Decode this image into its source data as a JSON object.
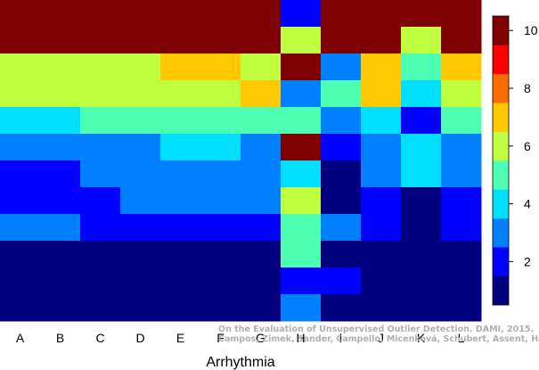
{
  "chart_data": {
    "type": "heatmap",
    "xlabel": "Arrhythmia",
    "columns": [
      "A",
      "B",
      "C",
      "D",
      "E",
      "F",
      "G",
      "H",
      "I",
      "J",
      "K",
      "L"
    ],
    "row_count": 12,
    "row_order": "top-to-bottom",
    "values": [
      [
        10,
        10,
        10,
        10,
        10,
        10,
        10,
        2,
        10,
        10,
        10,
        10
      ],
      [
        10,
        10,
        10,
        10,
        10,
        10,
        10,
        6,
        10,
        10,
        6,
        10
      ],
      [
        6,
        6,
        6,
        6,
        7,
        7,
        6,
        10,
        3,
        7,
        5,
        7
      ],
      [
        6,
        6,
        6,
        6,
        6,
        6,
        7,
        3,
        5,
        7,
        4,
        6
      ],
      [
        4,
        4,
        5,
        5,
        5,
        5,
        5,
        5,
        3,
        4,
        2,
        5
      ],
      [
        3,
        3,
        3,
        3,
        4,
        4,
        3,
        10,
        2,
        3,
        4,
        3
      ],
      [
        2,
        2,
        3,
        3,
        3,
        3,
        3,
        4,
        1,
        3,
        4,
        3
      ],
      [
        2,
        2,
        2,
        3,
        3,
        3,
        3,
        6,
        1,
        2,
        1,
        2
      ],
      [
        3,
        3,
        2,
        2,
        2,
        2,
        2,
        5,
        3,
        2,
        1,
        2
      ],
      [
        1,
        1,
        1,
        1,
        1,
        1,
        1,
        5,
        1,
        1,
        1,
        1
      ],
      [
        1,
        1,
        1,
        1,
        1,
        1,
        1,
        2,
        2,
        1,
        1,
        1
      ],
      [
        1,
        1,
        1,
        1,
        1,
        1,
        1,
        3,
        1,
        1,
        1,
        1
      ]
    ],
    "colorbar": {
      "ticks": [
        2,
        4,
        6,
        8,
        10
      ],
      "range": [
        0.5,
        10.5
      ],
      "colormap": "jet",
      "levels": [
        "#00007f",
        "#0000ff",
        "#0080ff",
        "#00dfff",
        "#4dffb3",
        "#bfff40",
        "#ffc800",
        "#ff6d00",
        "#ff0000",
        "#7f0000"
      ]
    },
    "grid": false,
    "legend": "colorbar-right"
  },
  "credit": {
    "line1": "On the Evaluation of Unsupervised Outlier Detection. DAMI, 2015.",
    "line2": "Campos, Zimek, Sander, Campello, Micenková, Schubert, Assent, Houle"
  }
}
